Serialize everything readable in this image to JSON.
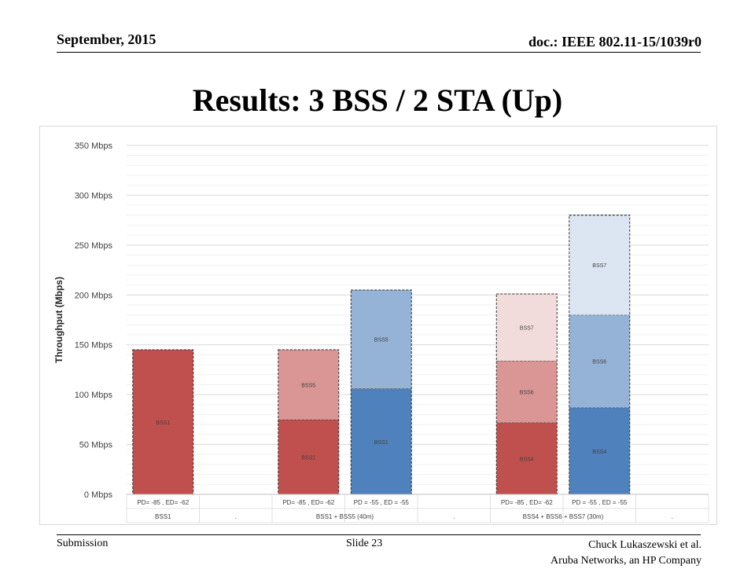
{
  "header": {
    "date": "September, 2015",
    "doc": "doc.: IEEE 802.11-15/1039r0"
  },
  "slide_title": "Results: 3 BSS / 2 STA (Up)",
  "footer": {
    "left": "Submission",
    "center": "Slide 23",
    "author": "Chuck Lukaszewski et al.",
    "company": "Aruba Networks, an HP Company"
  },
  "colors": {
    "bss1_red": "#c0504d",
    "bss1_blue": "#4f81bd",
    "bss5_red": "#d99694",
    "bss5_blue": "#95b3d7",
    "bss4_red": "#c0504d",
    "bss6_red": "#d99694",
    "bss7_red": "#f2dcdb",
    "bss4_blue": "#4f81bd",
    "bss6_blue": "#95b3d7",
    "bss7_blue": "#dce6f2"
  },
  "chart_data": {
    "type": "bar",
    "stacked": true,
    "ylabel": "Throughput (Mbps)",
    "ylim": [
      0,
      350
    ],
    "yticks": [
      "0 Mbps",
      "50 Mbps",
      "100 Mbps",
      "150 Mbps",
      "200 Mbps",
      "250 Mbps",
      "300 Mbps",
      "350 Mbps"
    ],
    "grid": true,
    "groups": [
      "BSS1",
      ".",
      "BSS1 + BSS5 (40m)",
      ".",
      "BSS4 + BSS6 + BSS7 (30m)",
      "."
    ],
    "categories": [
      "PD= -85 , ED= -62",
      "",
      "PD= -85 , ED= -62",
      "PD = -55 , ED = -55",
      "",
      "PD= -85 , ED= -62",
      "PD = -55 , ED = -55",
      ""
    ],
    "bars": [
      {
        "slot": 0,
        "segments": [
          {
            "label": "BSS1",
            "value": 145,
            "color": "#c0504d"
          }
        ]
      },
      {
        "slot": 2,
        "segments": [
          {
            "label": "BSS1",
            "value": 75,
            "color": "#c0504d"
          },
          {
            "label": "BSS5",
            "value": 70,
            "color": "#d99694"
          }
        ]
      },
      {
        "slot": 3,
        "segments": [
          {
            "label": "BSS1",
            "value": 106,
            "color": "#4f81bd"
          },
          {
            "label": "BSS5",
            "value": 99,
            "color": "#95b3d7"
          }
        ]
      },
      {
        "slot": 5,
        "segments": [
          {
            "label": "BSS4",
            "value": 72,
            "color": "#c0504d"
          },
          {
            "label": "BSS6",
            "value": 62,
            "color": "#d99694"
          },
          {
            "label": "BSS7",
            "value": 67,
            "color": "#f2dcdb"
          }
        ]
      },
      {
        "slot": 6,
        "segments": [
          {
            "label": "BSS4",
            "value": 87,
            "color": "#4f81bd"
          },
          {
            "label": "BSS6",
            "value": 93,
            "color": "#95b3d7"
          },
          {
            "label": "BSS7",
            "value": 100,
            "color": "#dce6f2"
          }
        ]
      }
    ]
  }
}
